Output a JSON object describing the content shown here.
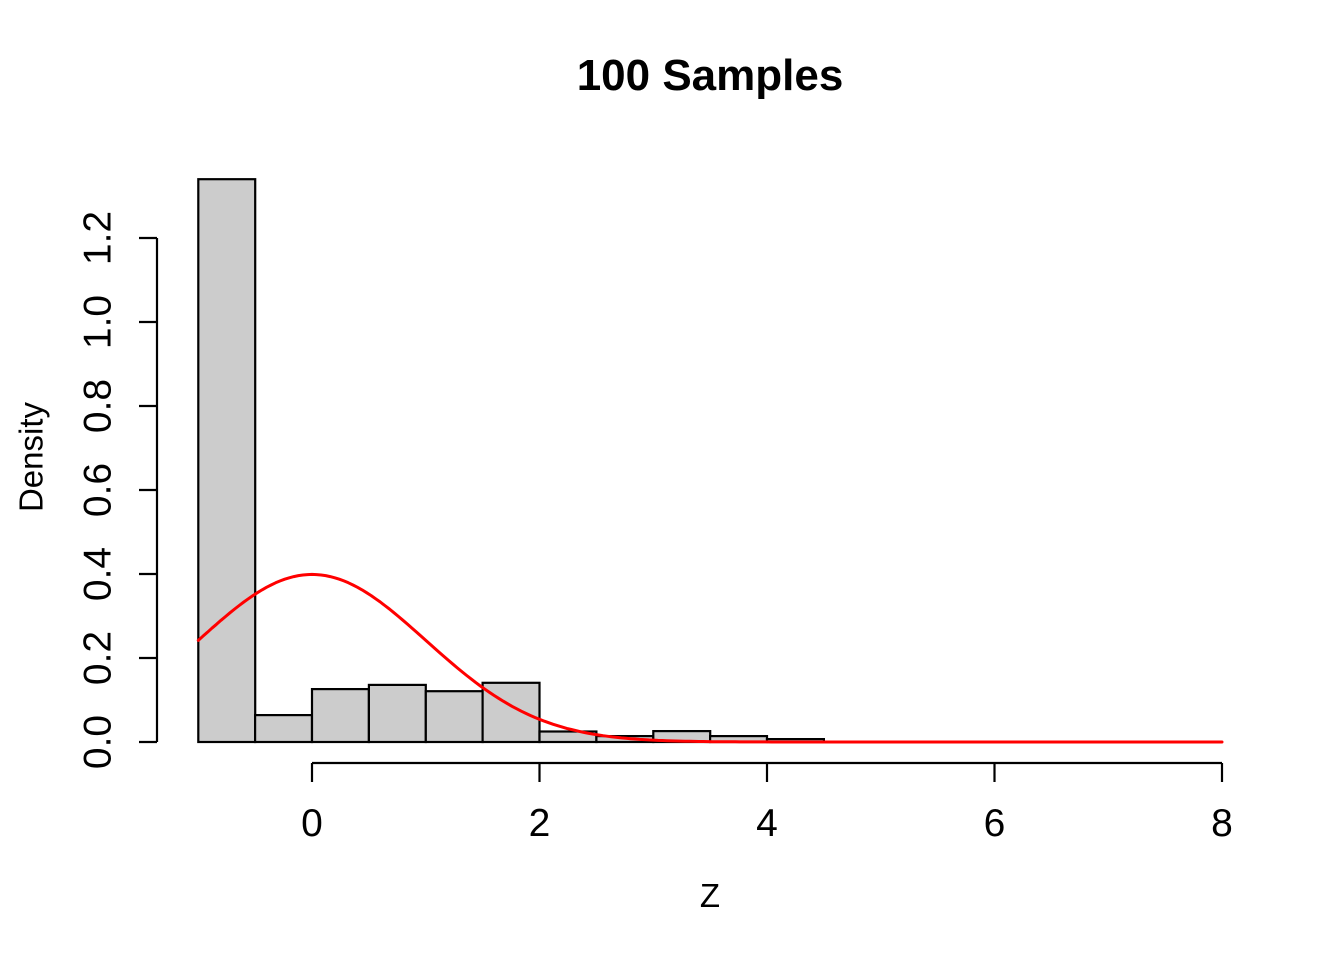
{
  "chart_data": {
    "type": "bar",
    "subtype": "histogram-with-density-curve",
    "title": "100 Samples",
    "xlabel": "Z",
    "ylabel": "Density",
    "xlim": [
      -1,
      8
    ],
    "ylim": [
      0,
      1.34
    ],
    "grid": false,
    "legend": false,
    "x_ticks": {
      "values": [
        0,
        2,
        4,
        6,
        8
      ],
      "labels": [
        "0",
        "2",
        "4",
        "6",
        "8"
      ]
    },
    "y_ticks": {
      "values": [
        0,
        0.2,
        0.4,
        0.6,
        0.8,
        1.0,
        1.2
      ],
      "labels": [
        "0.0",
        "0.2",
        "0.4",
        "0.6",
        "0.8",
        "1.0",
        "1.2"
      ]
    },
    "histogram": {
      "bin_breaks": [
        -1,
        -0.5,
        0,
        0.5,
        1,
        1.5,
        2,
        2.5,
        3,
        3.5,
        4,
        4.5
      ],
      "bin_densities": [
        1.34,
        0.064,
        0.126,
        0.136,
        0.121,
        0.141,
        0.025,
        0.014,
        0.026,
        0.014,
        0.007
      ],
      "fill": "#cccccc",
      "border": "#000000"
    },
    "curve": {
      "label": "standard-normal-density",
      "distribution": "normal",
      "mean": 0,
      "sd": 1,
      "x_from": -1,
      "x_to": 8,
      "peak_density": 0.399,
      "color": "#ff0000"
    }
  },
  "colors": {
    "background": "#ffffff",
    "axis": "#000000",
    "text": "#000000"
  }
}
